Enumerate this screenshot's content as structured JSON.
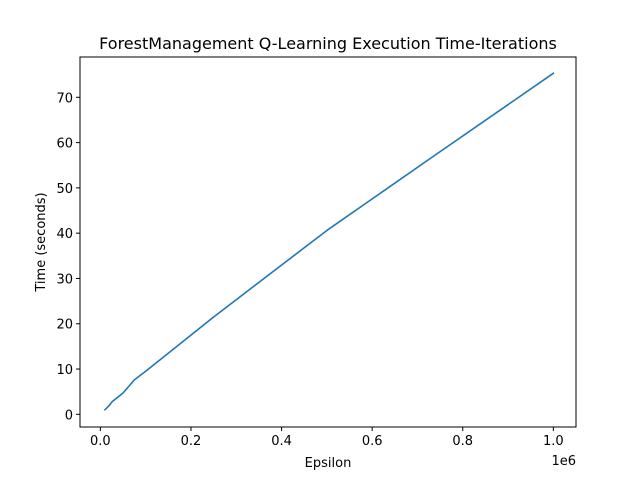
{
  "chart_data": {
    "type": "line",
    "title": "ForestManagement Q-Learning Execution Time-Iterations",
    "xlabel": "Epsilon",
    "ylabel": "Time (seconds)",
    "x_offset_text": "1e6",
    "xlim": [
      -45000,
      1050000
    ],
    "ylim": [
      -2.8,
      78.9
    ],
    "x_ticks": [
      0,
      200000,
      400000,
      600000,
      800000,
      1000000
    ],
    "x_tick_labels": [
      "0.0",
      "0.2",
      "0.4",
      "0.6",
      "0.8",
      "1.0"
    ],
    "y_ticks": [
      0,
      10,
      20,
      30,
      40,
      50,
      60,
      70
    ],
    "y_tick_labels": [
      "0",
      "10",
      "20",
      "30",
      "40",
      "50",
      "60",
      "70"
    ],
    "grid": false,
    "series": [
      {
        "color": "#1f77b4",
        "x": [
          10000,
          20000,
          25000,
          30000,
          50000,
          75000,
          100000,
          250000,
          500000,
          750000,
          1000000
        ],
        "y": [
          1.0,
          2.0,
          2.7,
          3.1,
          4.7,
          7.6,
          9.5,
          21.5,
          40.6,
          58.0,
          75.3
        ]
      }
    ]
  }
}
